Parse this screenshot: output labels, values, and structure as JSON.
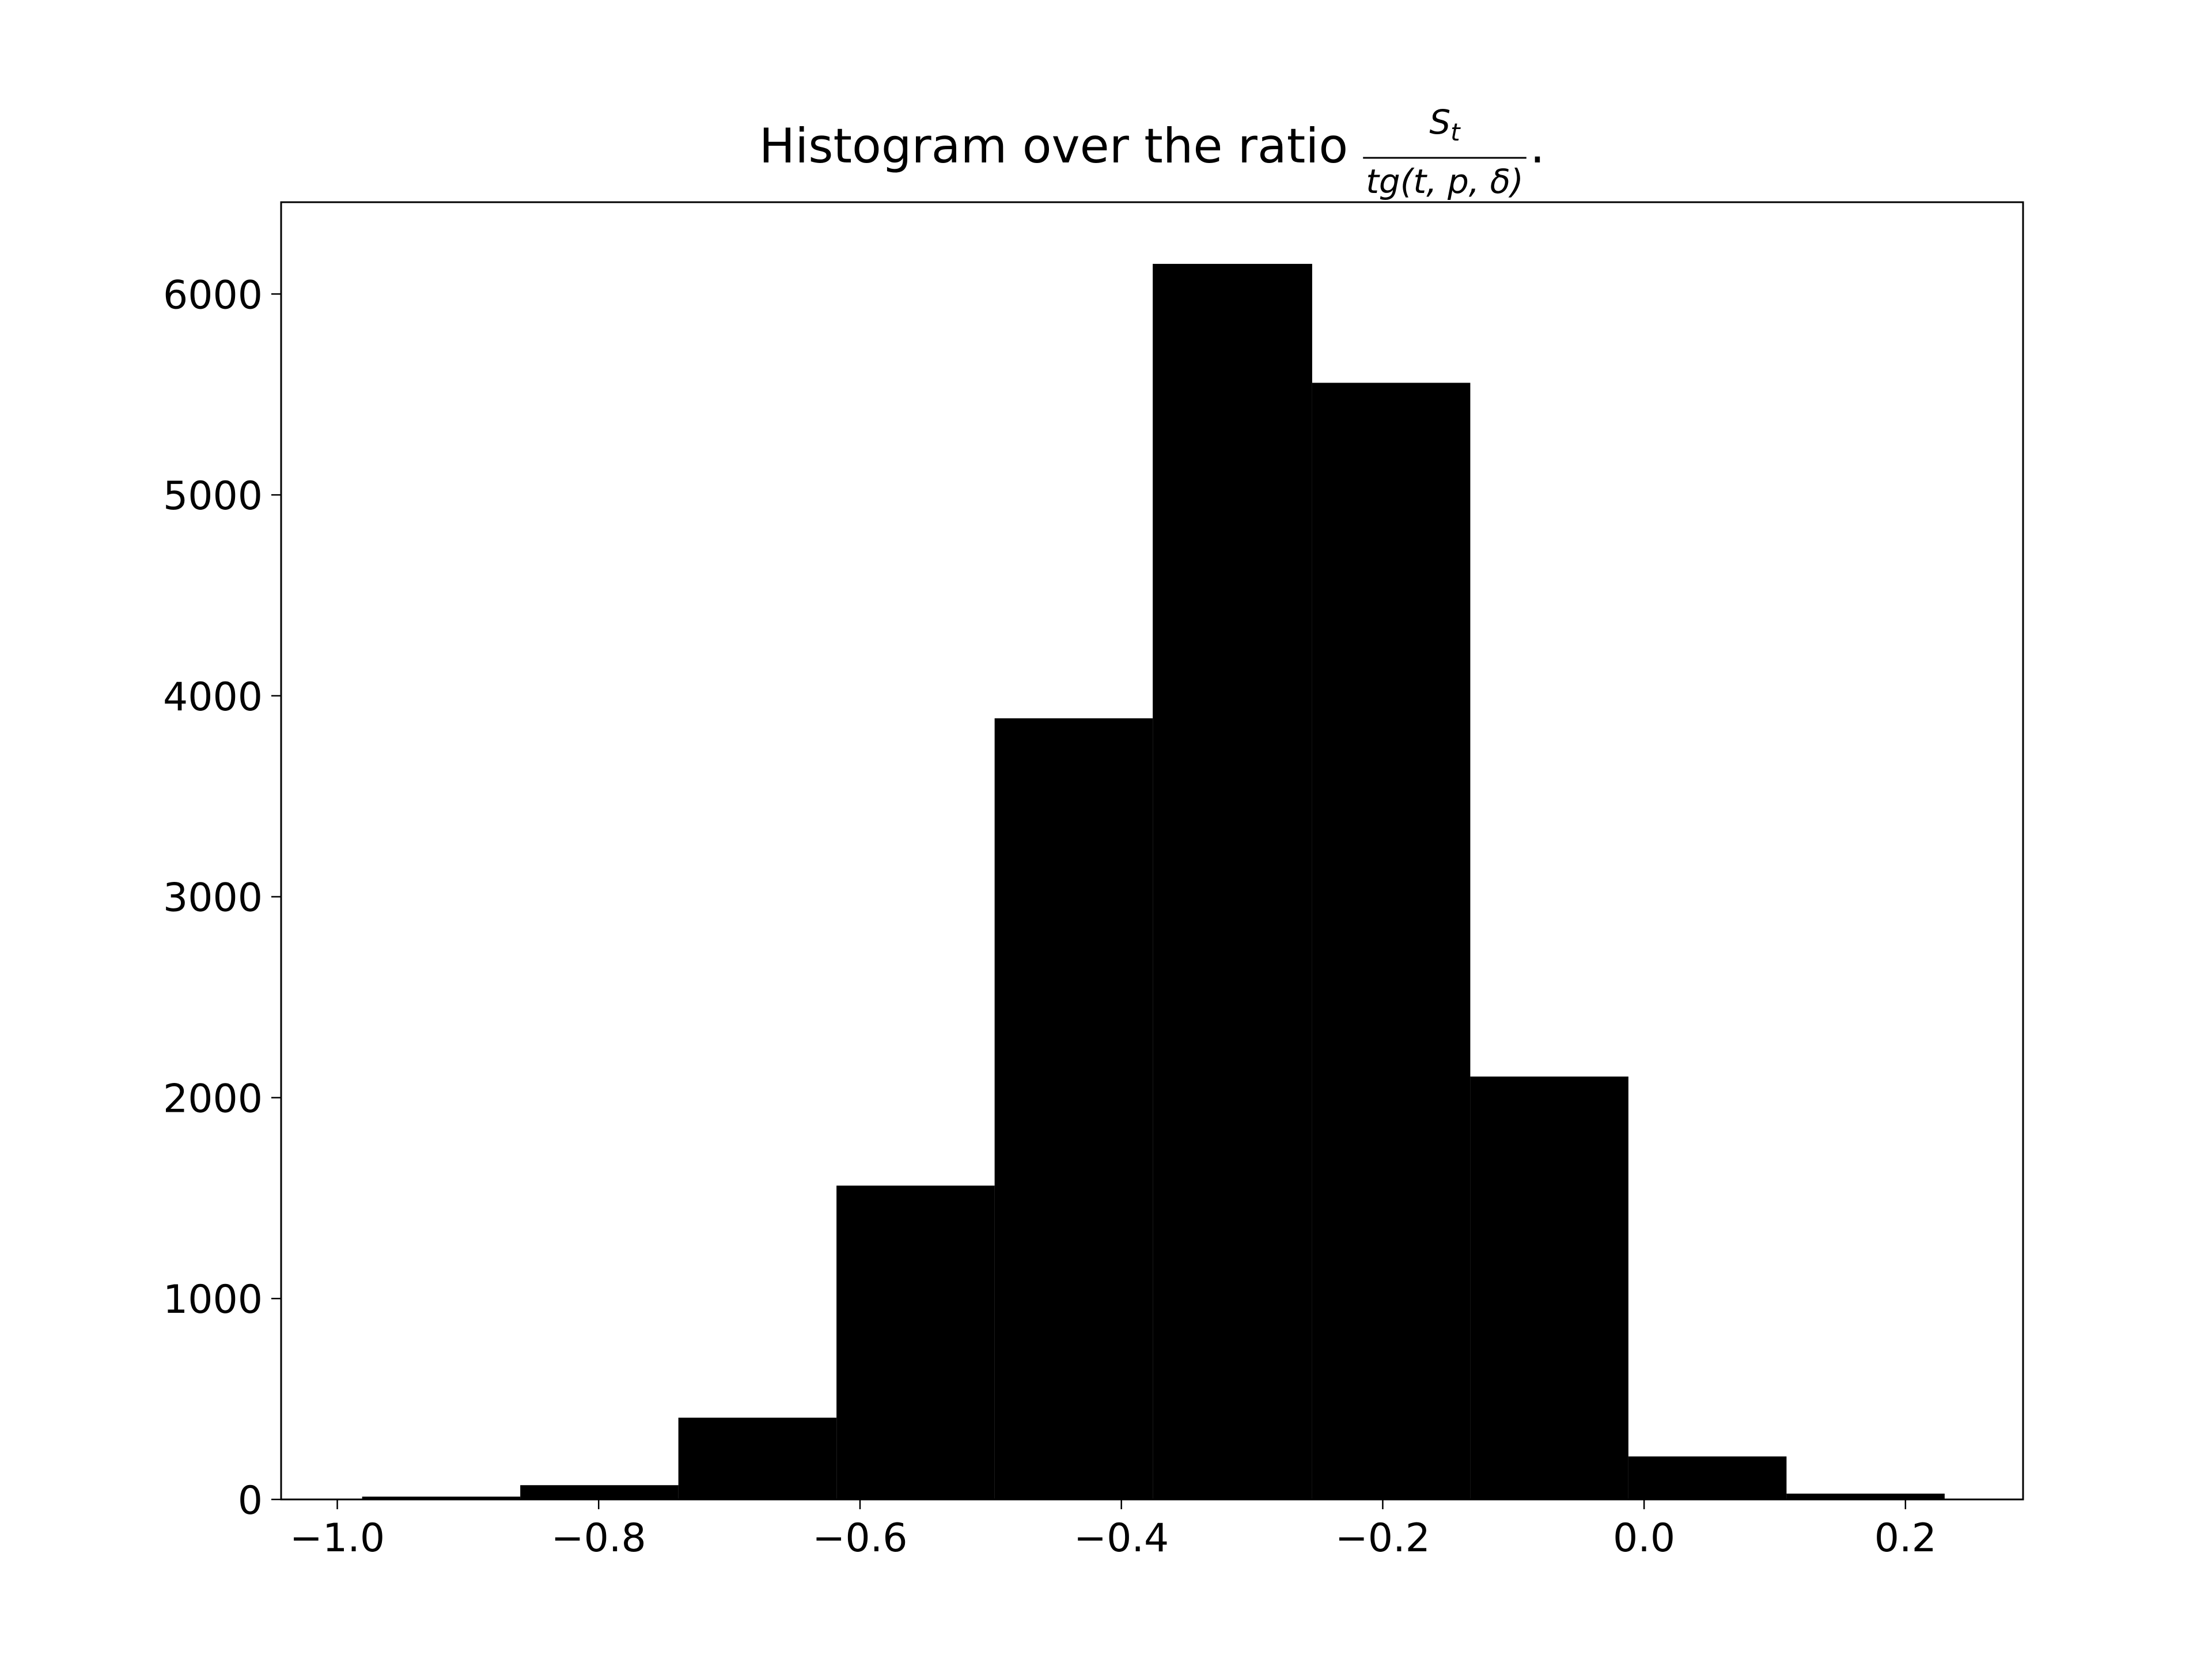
{
  "chart_data": {
    "type": "histogram",
    "title": {
      "text": "Histogram over the ratio",
      "numerator": "S",
      "numerator_sub": "t",
      "denominator": "tg(t, p, δ)",
      "suffix": "."
    },
    "bins": [
      -0.981,
      -0.86,
      -0.739,
      -0.618,
      -0.497,
      -0.376,
      -0.254,
      -0.133,
      -0.012,
      0.109,
      0.23
    ],
    "values": [
      14,
      71,
      407,
      1562,
      3888,
      6150,
      5558,
      2105,
      214,
      29
    ],
    "color": "#000000",
    "xlim": [
      -1.043,
      0.29
    ],
    "ylim": [
      0,
      6457
    ],
    "xticks": [
      {
        "value": -1.0,
        "label": "−1.0"
      },
      {
        "value": -0.8,
        "label": "−0.8"
      },
      {
        "value": -0.6,
        "label": "−0.6"
      },
      {
        "value": -0.4,
        "label": "−0.4"
      },
      {
        "value": -0.2,
        "label": "−0.2"
      },
      {
        "value": 0.0,
        "label": "0.0"
      },
      0.2
    ],
    "yticks": [
      0,
      1000,
      2000,
      3000,
      4000,
      5000,
      6000
    ]
  }
}
